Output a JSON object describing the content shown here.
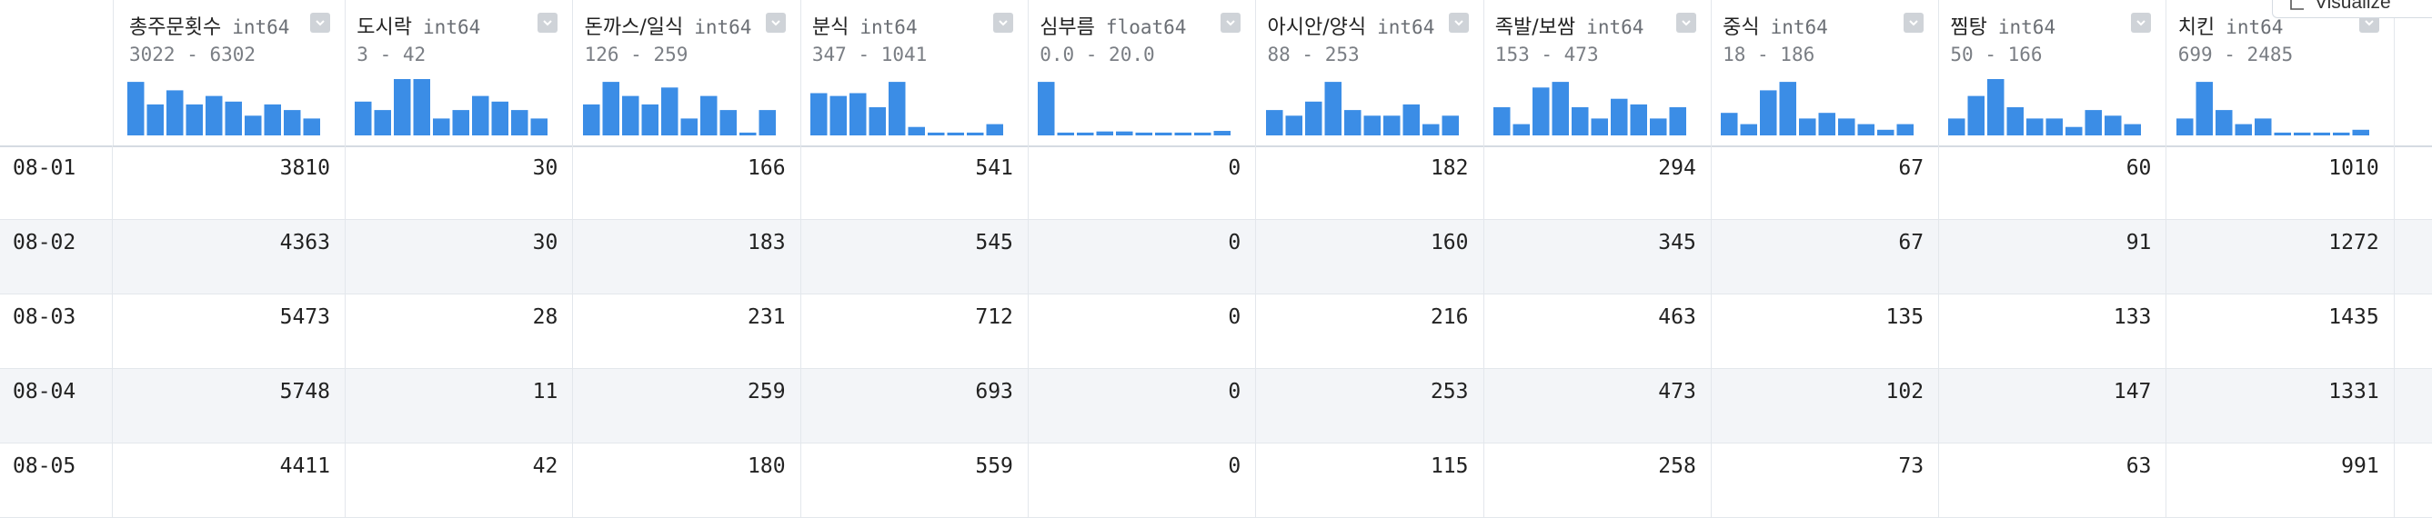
{
  "columns": [
    {
      "name": "총주문횟수",
      "type": "int64",
      "range": "3022 - 6302",
      "hist": [
        0.95,
        0.55,
        0.8,
        0.55,
        0.7,
        0.6,
        0.35,
        0.55,
        0.45,
        0.3
      ]
    },
    {
      "name": "도시락",
      "type": "int64",
      "range": "3 - 42",
      "hist": [
        0.6,
        0.45,
        1.0,
        1.0,
        0.3,
        0.45,
        0.7,
        0.6,
        0.45,
        0.3
      ]
    },
    {
      "name": "돈까스/일식",
      "type": "int64",
      "range": "126 - 259",
      "hist": [
        0.55,
        0.95,
        0.7,
        0.55,
        0.85,
        0.3,
        0.7,
        0.45,
        0.05,
        0.45
      ]
    },
    {
      "name": "분식",
      "type": "int64",
      "range": "347 - 1041",
      "hist": [
        0.75,
        0.7,
        0.75,
        0.5,
        0.95,
        0.15,
        0.05,
        0.05,
        0.05,
        0.2
      ]
    },
    {
      "name": "심부름",
      "type": "float64",
      "range": "0.0 - 20.0",
      "hist": [
        0.95,
        0.05,
        0.05,
        0.07,
        0.07,
        0.05,
        0.05,
        0.05,
        0.05,
        0.08
      ]
    },
    {
      "name": "아시안/양식",
      "type": "int64",
      "range": "88 - 253",
      "hist": [
        0.45,
        0.35,
        0.6,
        0.95,
        0.45,
        0.35,
        0.35,
        0.55,
        0.2,
        0.35
      ]
    },
    {
      "name": "족발/보쌈",
      "type": "int64",
      "range": "153 - 473",
      "hist": [
        0.5,
        0.2,
        0.85,
        0.95,
        0.5,
        0.3,
        0.65,
        0.55,
        0.3,
        0.5
      ]
    },
    {
      "name": "중식",
      "type": "int64",
      "range": "18 - 186",
      "hist": [
        0.4,
        0.2,
        0.8,
        0.95,
        0.3,
        0.4,
        0.3,
        0.2,
        0.1,
        0.2
      ]
    },
    {
      "name": "찜탕",
      "type": "int64",
      "range": "50 - 166",
      "hist": [
        0.3,
        0.7,
        1.0,
        0.5,
        0.3,
        0.3,
        0.15,
        0.45,
        0.35,
        0.2
      ]
    },
    {
      "name": "치킨",
      "type": "int64",
      "range": "699 - 2485",
      "hist": [
        0.3,
        0.95,
        0.45,
        0.2,
        0.3,
        0.05,
        0.05,
        0.05,
        0.05,
        0.1
      ]
    }
  ],
  "rows": [
    {
      "index": "08-01",
      "values": [
        "3810",
        "30",
        "166",
        "541",
        "0",
        "182",
        "294",
        "67",
        "60",
        "1010"
      ]
    },
    {
      "index": "08-02",
      "values": [
        "4363",
        "30",
        "183",
        "545",
        "0",
        "160",
        "345",
        "67",
        "91",
        "1272"
      ]
    },
    {
      "index": "08-03",
      "values": [
        "5473",
        "28",
        "231",
        "712",
        "0",
        "216",
        "463",
        "135",
        "133",
        "1435"
      ]
    },
    {
      "index": "08-04",
      "values": [
        "5748",
        "11",
        "259",
        "693",
        "0",
        "253",
        "473",
        "102",
        "147",
        "1331"
      ]
    },
    {
      "index": "08-05",
      "values": [
        "4411",
        "42",
        "180",
        "559",
        "0",
        "115",
        "258",
        "73",
        "63",
        "991"
      ]
    }
  ],
  "toolbar": {
    "visualize_label": "Visualize"
  },
  "colors": {
    "histogram_bar": "#3b8de6"
  }
}
